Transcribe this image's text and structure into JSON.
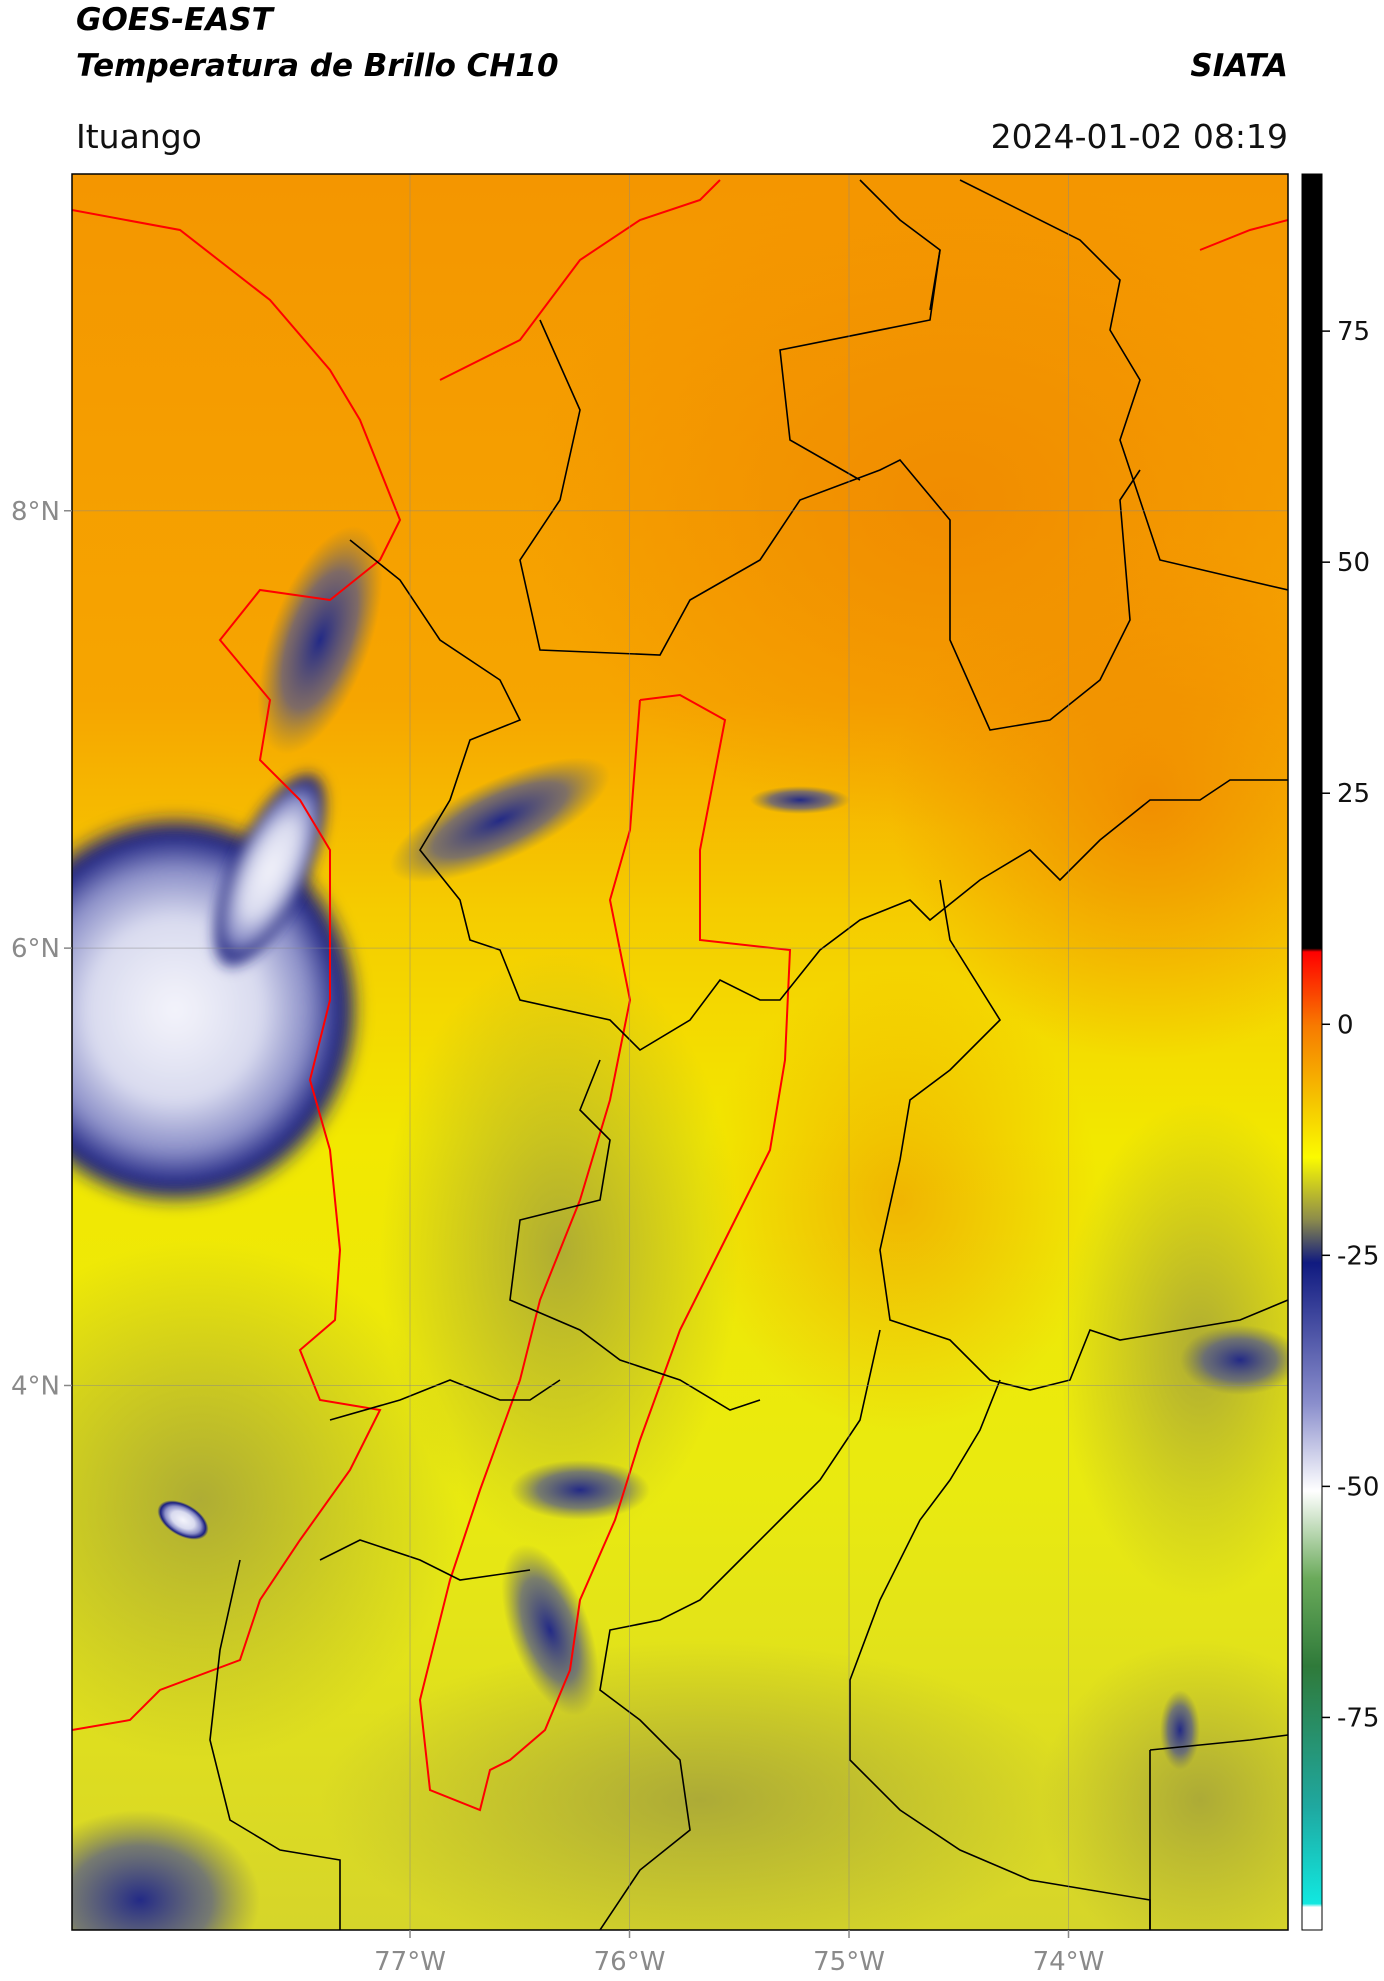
{
  "header": {
    "title": "GOES-EAST",
    "subtitle": "Temperatura de Brillo CH10",
    "brand": "SIATA",
    "location": "Ituango",
    "timestamp": "2024-01-02 08:19"
  },
  "map": {
    "xlim": [
      -78.54,
      -73.0
    ],
    "ylim": [
      1.51,
      9.54
    ],
    "xticks": [
      {
        "value": -77,
        "label": "77°W"
      },
      {
        "value": -76,
        "label": "76°W"
      },
      {
        "value": -75,
        "label": "75°W"
      },
      {
        "value": -74,
        "label": "74°W"
      }
    ],
    "yticks": [
      {
        "value": 4,
        "label": "4°N"
      },
      {
        "value": 6,
        "label": "6°N"
      },
      {
        "value": 8,
        "label": "8°N"
      }
    ],
    "grid": true
  },
  "colorbar": {
    "lim": [
      -98,
      92
    ],
    "ticks": [
      -75,
      -50,
      -25,
      0,
      25,
      50,
      75
    ]
  }
}
